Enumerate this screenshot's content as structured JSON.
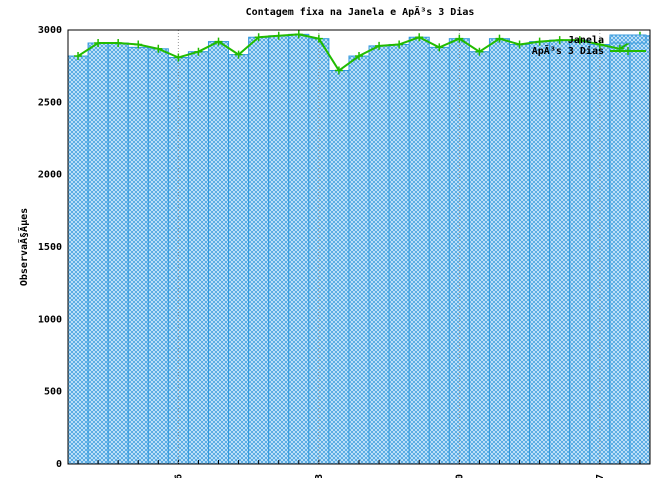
{
  "chart_data": {
    "type": "bar_line",
    "title": "Contagem fixa na Janela e ApÃ³s 3 Dias",
    "ylabel": "ObservaÃ§Ãµes",
    "categories": [
      null,
      null,
      null,
      null,
      null,
      "06",
      null,
      null,
      null,
      null,
      null,
      null,
      "13",
      null,
      null,
      null,
      null,
      null,
      null,
      "20",
      null,
      null,
      null,
      null,
      null,
      null,
      "27",
      null,
      null
    ],
    "series": [
      {
        "name": "Janela",
        "color": "#3399dd",
        "values": [
          2820,
          2910,
          2910,
          2880,
          2870,
          2810,
          2850,
          2920,
          2830,
          2950,
          2960,
          2970,
          2940,
          2720,
          2820,
          2890,
          2900,
          2950,
          2880,
          2940,
          2850,
          2940,
          2900,
          2920,
          2930,
          2930,
          2900,
          2950,
          2960
        ]
      },
      {
        "name": "ApÃ³s 3 Dias",
        "color": "#22bb00",
        "values": [
          2820,
          2910,
          2910,
          2900,
          2870,
          2810,
          2850,
          2920,
          2830,
          2950,
          2960,
          2970,
          2940,
          2720,
          2820,
          2890,
          2900,
          2950,
          2880,
          2940,
          2850,
          2940,
          2900,
          2920,
          2930,
          2930,
          2900,
          2870,
          2960
        ]
      }
    ],
    "ylim": [
      0,
      3000
    ],
    "yticks": [
      0,
      500,
      1000,
      1500,
      2000,
      2500,
      3000
    ],
    "grid": true,
    "legend": "top-right"
  }
}
